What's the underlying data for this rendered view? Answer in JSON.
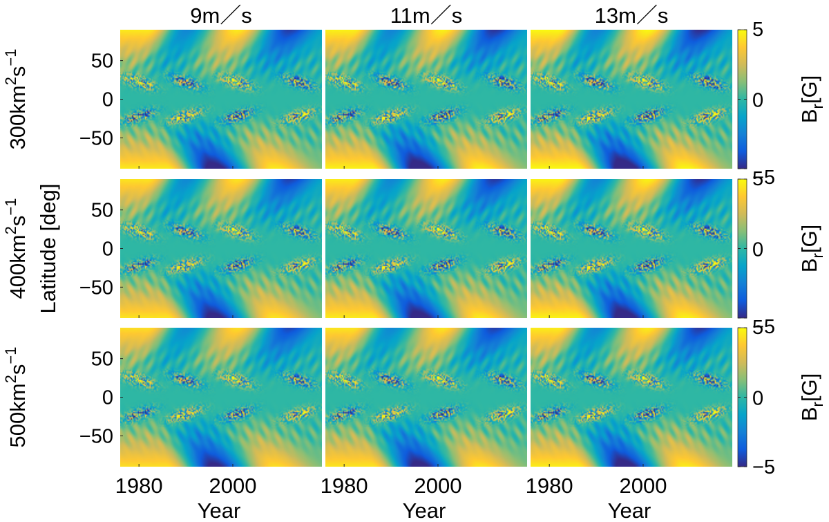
{
  "chart_data": {
    "type": "heatmap",
    "layout": "3x3 panel grid",
    "columns": [
      "9m／s",
      "11m／s",
      "13m／s"
    ],
    "rows": [
      "300km²s⁻¹",
      "400km²s⁻¹",
      "500km²s⁻¹"
    ],
    "row_labels": [
      {
        "base": "300km",
        "sup1": "2",
        "mid": "s",
        "sup2": "−1"
      },
      {
        "base": "400km",
        "sup1": "2",
        "mid": "s",
        "sup2": "−1"
      },
      {
        "base": "500km",
        "sup1": "2",
        "mid": "s",
        "sup2": "−1"
      }
    ],
    "xlabel": "Year",
    "ylabel": "Latitude [deg]",
    "xlim": [
      1976,
      2019
    ],
    "ylim": [
      -90,
      90
    ],
    "xticks": [
      1980,
      2000
    ],
    "xtick_labels": [
      "1980",
      "2000"
    ],
    "yticks": [
      50,
      0,
      -50
    ],
    "ytick_labels": [
      "50",
      "0",
      "−50"
    ],
    "colorbar": {
      "label_base": "B",
      "label_sub": "r",
      "label_unit": "[G]",
      "clim": [
        -5,
        5
      ],
      "ticks": [
        5,
        0,
        -5
      ],
      "tick_labels": [
        "5",
        "0",
        "−5"
      ],
      "colormap": "parula",
      "colors": [
        "#352a87",
        "#0f5cdd",
        "#1481d6",
        "#06a4ca",
        "#2eb7a4",
        "#87bf77",
        "#d1bb59",
        "#fec832",
        "#f9fb0e"
      ]
    },
    "pattern": {
      "polar_field_north": [
        {
          "year": 1978,
          "value": 4
        },
        {
          "year": 1986,
          "value": -2
        },
        {
          "year": 1997,
          "value": 4
        },
        {
          "year": 2008,
          "value": -4
        },
        {
          "year": 2016,
          "value": -1
        }
      ],
      "polar_field_south": [
        {
          "year": 1982,
          "value": 4
        },
        {
          "year": 1992,
          "value": -5
        },
        {
          "year": 2005,
          "value": 4
        },
        {
          "year": 2016,
          "value": 1
        }
      ],
      "activity_maxima_years": [
        1980,
        1990,
        2001,
        2014
      ]
    }
  }
}
